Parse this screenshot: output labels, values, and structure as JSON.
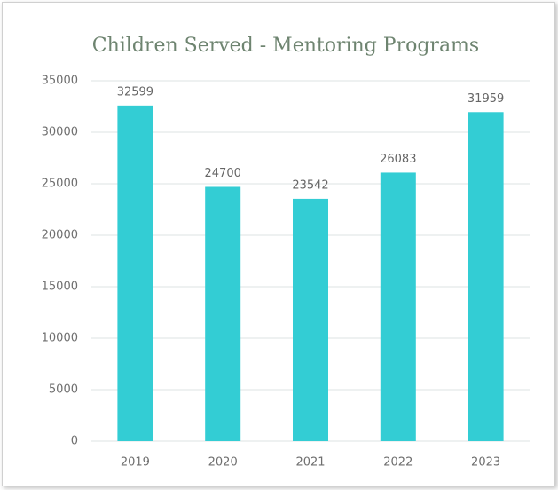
{
  "chart_data": {
    "type": "bar",
    "title": "Children Served - Mentoring Programs",
    "categories": [
      "2019",
      "2020",
      "2021",
      "2022",
      "2023"
    ],
    "values": [
      32599,
      24700,
      23542,
      26083,
      31959
    ],
    "color": "#33cdd4",
    "ylim": [
      0,
      35000
    ],
    "yticks": [
      0,
      5000,
      10000,
      15000,
      20000,
      25000,
      30000,
      35000
    ],
    "grid": true
  }
}
